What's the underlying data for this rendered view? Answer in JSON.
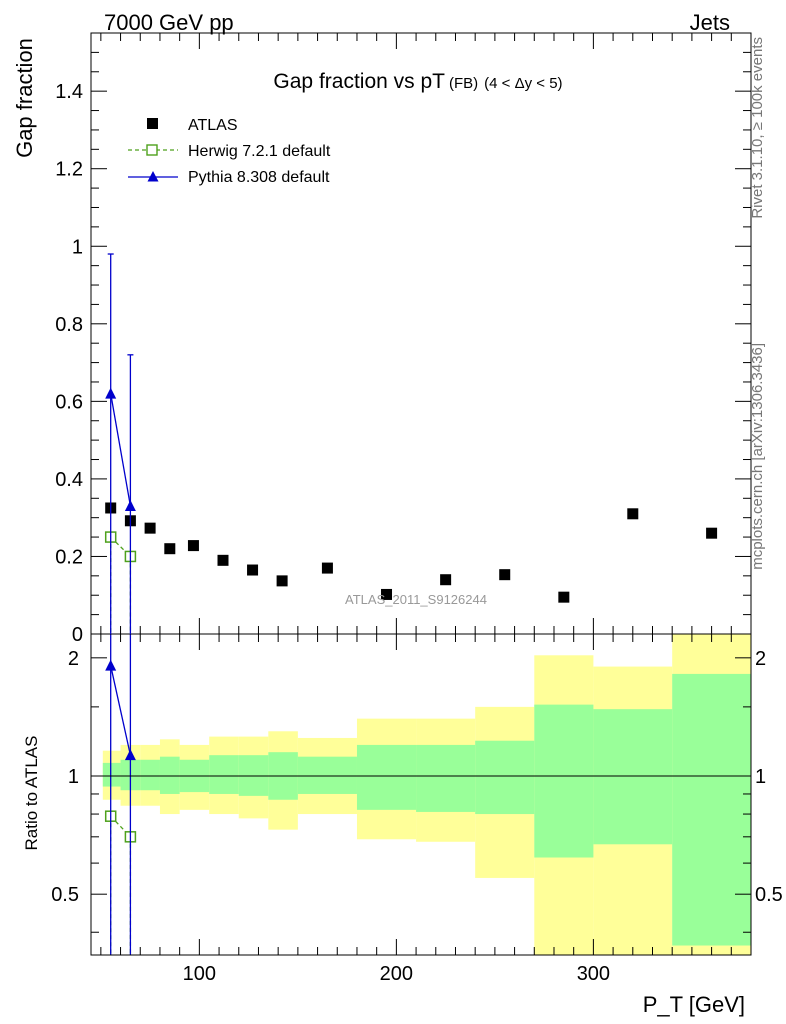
{
  "header": {
    "left": "7000 GeV pp",
    "right": "Jets"
  },
  "side": {
    "rivet": "Rivet 3.1.10, ≥ 100k events",
    "mcplots": "mcplots.cern.ch [arXiv:1306.3436]"
  },
  "chart_data": [
    {
      "type": "scatter",
      "title_main": "Gap fraction vs pT",
      "title_sub": "(FB)",
      "title_range": "(4 < Δy < 5)",
      "watermark": "ATLAS_2011_S9126244",
      "ylabel": "Gap fraction",
      "xlim": [
        45,
        380
      ],
      "ylim": [
        0,
        1.55
      ],
      "yticks": [
        0,
        0.2,
        0.4,
        0.6,
        0.8,
        1,
        1.2,
        1.4
      ],
      "ytick_labels": [
        "0",
        "0.2",
        "0.4",
        "0.6",
        "0.8",
        "1",
        "1.2",
        "1.4"
      ],
      "series": [
        {
          "name": "ATLAS",
          "color": "#000000",
          "marker": "square",
          "x": [
            55,
            65,
            75,
            85,
            97,
            112,
            127,
            142,
            165,
            195,
            225,
            255,
            285,
            320,
            360
          ],
          "y": [
            0.325,
            0.292,
            0.273,
            0.22,
            0.228,
            0.19,
            0.165,
            0.137,
            0.17,
            0.102,
            0.14,
            0.153,
            0.095,
            0.31,
            0.26
          ]
        },
        {
          "name": "Herwig 7.2.1 default",
          "color": "#4ea11c",
          "marker": "open-square",
          "dash": true,
          "x": [
            55,
            65
          ],
          "y": [
            0.25,
            0.2
          ],
          "yerr": [
            0.01,
            0.01
          ]
        },
        {
          "name": "Pythia 8.308 default",
          "color": "#0000cc",
          "marker": "triangle",
          "x": [
            55,
            65
          ],
          "y": [
            0.62,
            0.33
          ],
          "yerr": [
            0.36,
            0.39
          ]
        }
      ]
    },
    {
      "type": "ratio",
      "ylabel": "Ratio to ATLAS",
      "xlabel": "P_T [GeV]",
      "xlim": [
        45,
        380
      ],
      "ylim": [
        0.35,
        2.3
      ],
      "log_y": true,
      "yticks": [
        0.5,
        1,
        2
      ],
      "ytick_labels": [
        "0.5",
        "1",
        "2"
      ],
      "xticks": [
        100,
        200,
        300
      ],
      "xtick_labels": [
        "100",
        "200",
        "300"
      ],
      "bands": {
        "edges": [
          51,
          60,
          70,
          80,
          90,
          105,
          120,
          135,
          150,
          180,
          210,
          240,
          270,
          300,
          340,
          380
        ],
        "green_lo": [
          0.94,
          0.92,
          0.92,
          0.9,
          0.91,
          0.9,
          0.89,
          0.87,
          0.9,
          0.82,
          0.81,
          0.8,
          0.62,
          0.67,
          0.37
        ],
        "green_hi": [
          1.08,
          1.1,
          1.1,
          1.12,
          1.1,
          1.13,
          1.13,
          1.15,
          1.12,
          1.2,
          1.2,
          1.23,
          1.52,
          1.48,
          1.82
        ],
        "yellow_lo": [
          0.87,
          0.84,
          0.84,
          0.8,
          0.82,
          0.8,
          0.78,
          0.73,
          0.8,
          0.69,
          0.68,
          0.55,
          0.34,
          0.35,
          0.34
        ],
        "yellow_hi": [
          1.16,
          1.2,
          1.2,
          1.24,
          1.2,
          1.26,
          1.26,
          1.3,
          1.25,
          1.4,
          1.4,
          1.5,
          2.03,
          1.9,
          2.3
        ]
      },
      "series": [
        {
          "name": "Herwig 7.2.1 default",
          "color": "#4ea11c",
          "x": [
            55,
            65
          ],
          "y": [
            0.79,
            0.7
          ]
        },
        {
          "name": "Pythia 8.308 default",
          "color": "#0000cc",
          "x": [
            55,
            65
          ],
          "y": [
            1.91,
            1.13
          ]
        }
      ]
    }
  ]
}
